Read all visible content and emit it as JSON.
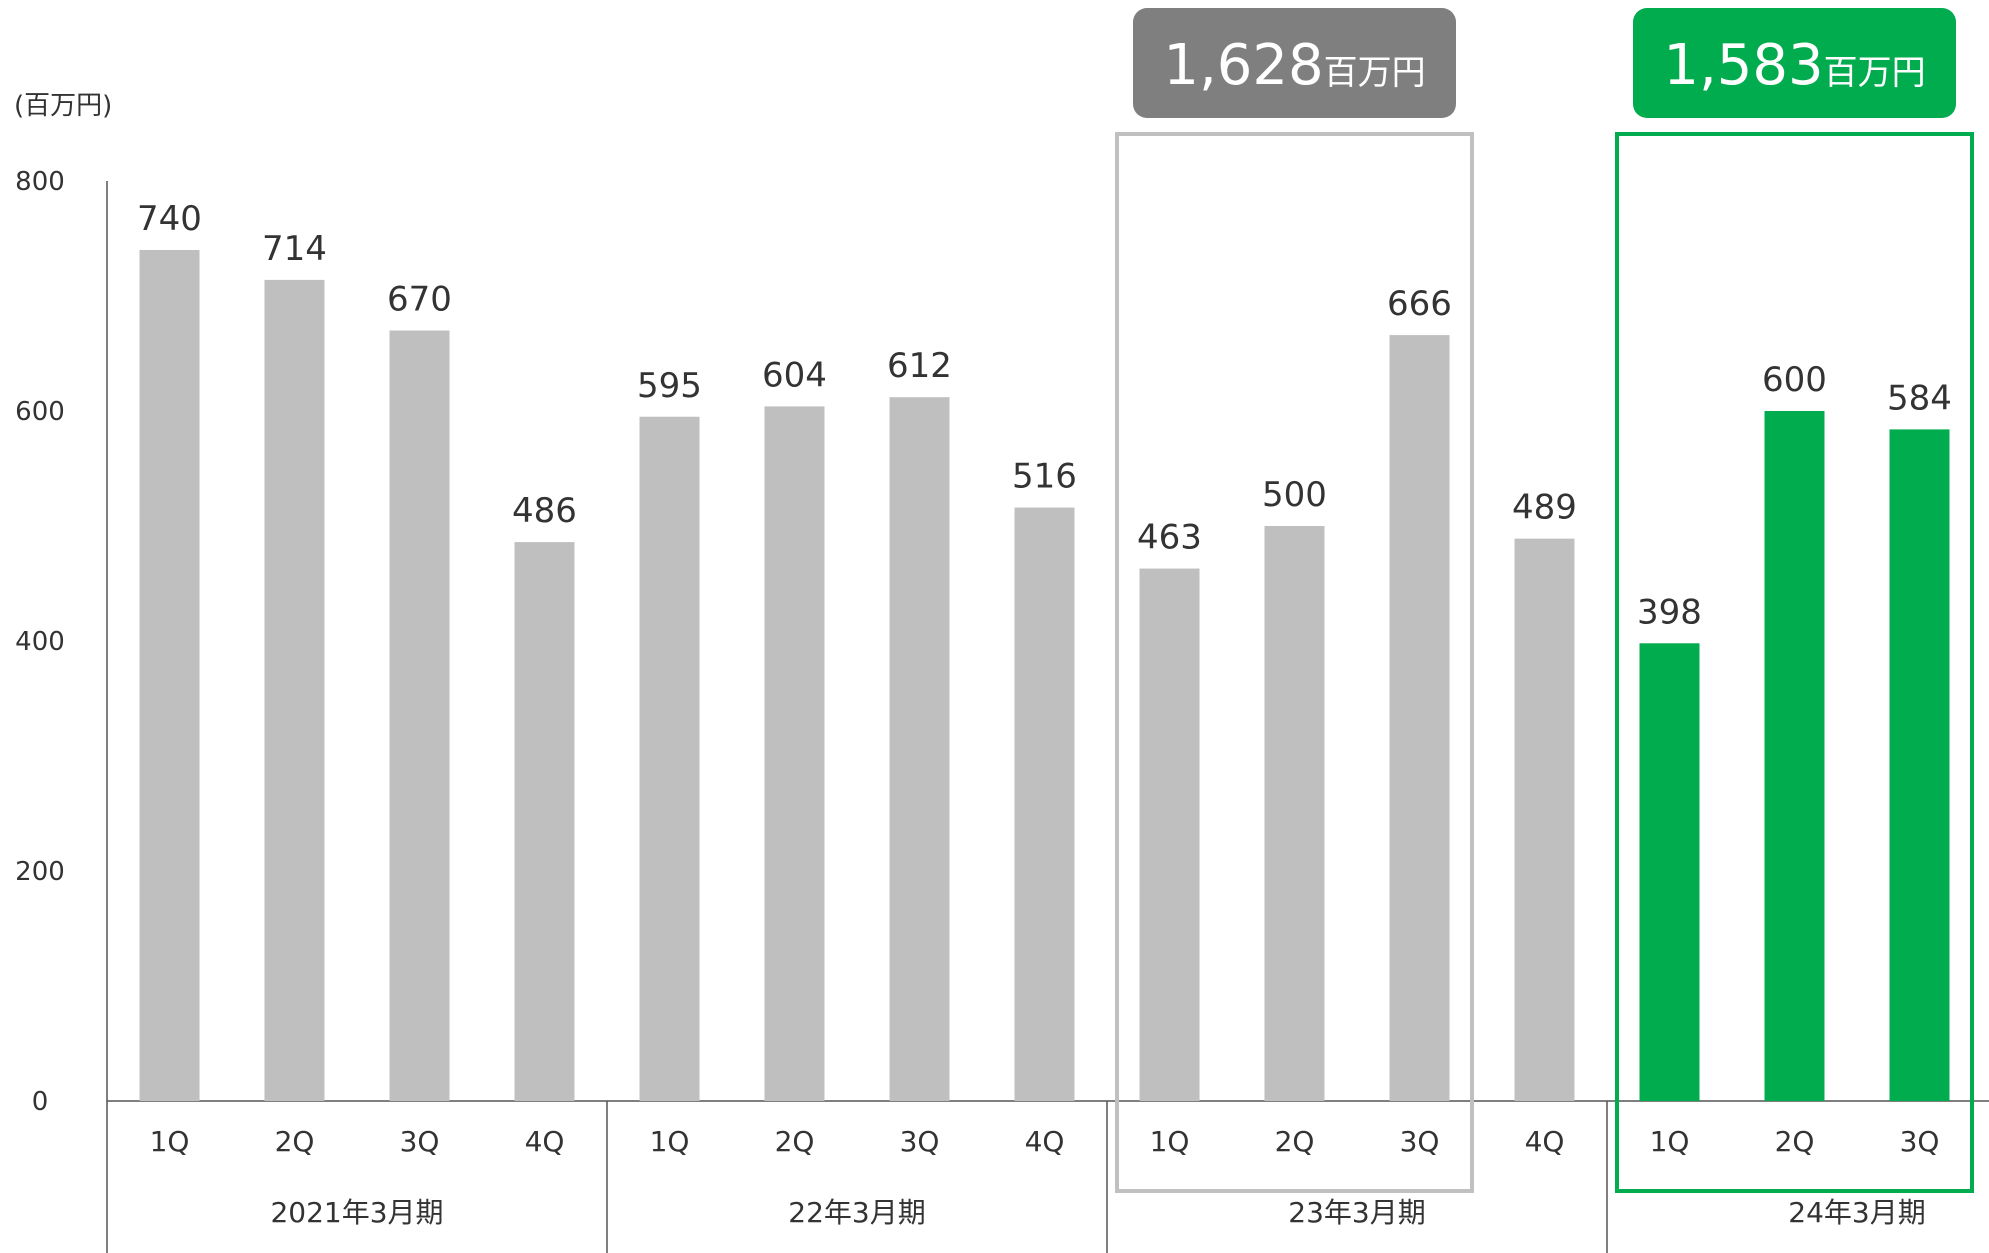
{
  "chart_data": {
    "type": "bar",
    "unit_label": "(百万円)",
    "ylim": [
      0,
      800
    ],
    "yticks": [
      0,
      200,
      400,
      600,
      800
    ],
    "grid": false,
    "legend": "none",
    "colors": {
      "default": "#bfbfbf",
      "highlight": "#00ac4e",
      "callout_gray": "#7f7f7f",
      "frame_gray": "#c0c0c0",
      "frame_green": "#00ac4e"
    },
    "groups": [
      {
        "label": "2021年3月期",
        "bars": [
          {
            "q": "1Q",
            "value": 740,
            "highlight": false
          },
          {
            "q": "2Q",
            "value": 714,
            "highlight": false
          },
          {
            "q": "3Q",
            "value": 670,
            "highlight": false
          },
          {
            "q": "4Q",
            "value": 486,
            "highlight": false
          }
        ]
      },
      {
        "label": "22年3月期",
        "bars": [
          {
            "q": "1Q",
            "value": 595,
            "highlight": false
          },
          {
            "q": "2Q",
            "value": 604,
            "highlight": false
          },
          {
            "q": "3Q",
            "value": 612,
            "highlight": false
          },
          {
            "q": "4Q",
            "value": 516,
            "highlight": false
          }
        ]
      },
      {
        "label": "23年3月期",
        "bars": [
          {
            "q": "1Q",
            "value": 463,
            "highlight": false
          },
          {
            "q": "2Q",
            "value": 500,
            "highlight": false
          },
          {
            "q": "3Q",
            "value": 666,
            "highlight": false
          },
          {
            "q": "4Q",
            "value": 489,
            "highlight": false
          }
        ]
      },
      {
        "label": "24年3月期",
        "bars": [
          {
            "q": "1Q",
            "value": 398,
            "highlight": true
          },
          {
            "q": "2Q",
            "value": 600,
            "highlight": true
          },
          {
            "q": "3Q",
            "value": 584,
            "highlight": true
          }
        ]
      }
    ],
    "callouts": [
      {
        "value_text": "1,628",
        "unit_text": "百万円",
        "style": "gray",
        "from_bar": 8,
        "to_bar": 10
      },
      {
        "value_text": "1,583",
        "unit_text": "百万円",
        "style": "green",
        "from_bar": 12,
        "to_bar": 14
      }
    ]
  }
}
